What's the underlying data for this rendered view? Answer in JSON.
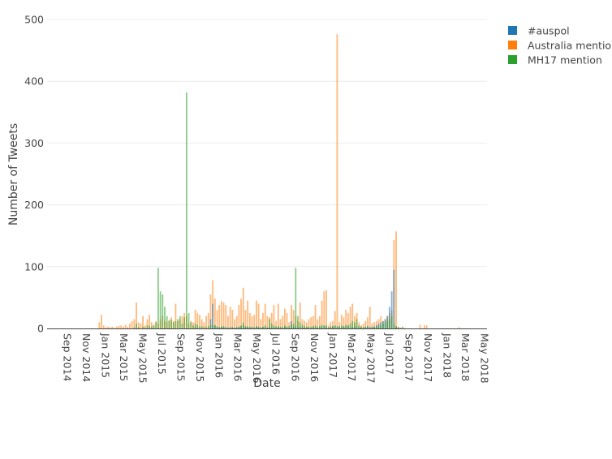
{
  "chart_data": {
    "type": "bar",
    "barmode": "overlay",
    "xlabel": "Date",
    "ylabel": "Number of Tweets",
    "ylim": [
      0,
      500
    ],
    "yticks": [
      "0",
      "100",
      "200",
      "300",
      "400",
      "500"
    ],
    "xticks": [
      "Sep 2014",
      "Nov 2014",
      "Jan 2015",
      "Mar 2015",
      "May 2015",
      "Jul 2015",
      "Sep 2015",
      "Nov 2015",
      "Jan 2016",
      "Mar 2016",
      "May 2016",
      "Jul 2016",
      "Sep 2016",
      "Nov 2016",
      "Jan 2017",
      "Mar 2017",
      "May 2017",
      "Jul 2017",
      "Sep 2017",
      "Nov 2017",
      "Jan 2018",
      "Mar 2018",
      "May 2018"
    ],
    "xtick_dates": [
      "2014-09-01",
      "2014-11-01",
      "2015-01-01",
      "2015-03-01",
      "2015-05-01",
      "2015-07-01",
      "2015-09-01",
      "2015-11-01",
      "2016-01-01",
      "2016-03-01",
      "2016-05-01",
      "2016-07-01",
      "2016-09-01",
      "2016-11-01",
      "2017-01-01",
      "2017-03-01",
      "2017-05-01",
      "2017-07-01",
      "2017-09-01",
      "2017-11-01",
      "2018-01-01",
      "2018-03-01",
      "2018-05-01"
    ],
    "grid": true,
    "legend_position": "top-right",
    "x": [
      "2015-01-05",
      "2015-01-12",
      "2015-01-19",
      "2015-01-26",
      "2015-02-02",
      "2015-02-09",
      "2015-02-16",
      "2015-02-23",
      "2015-03-02",
      "2015-03-09",
      "2015-03-16",
      "2015-03-23",
      "2015-03-30",
      "2015-04-06",
      "2015-04-13",
      "2015-04-20",
      "2015-04-27",
      "2015-05-04",
      "2015-05-11",
      "2015-05-18",
      "2015-05-25",
      "2015-06-01",
      "2015-06-08",
      "2015-06-15",
      "2015-06-22",
      "2015-06-29",
      "2015-07-06",
      "2015-07-13",
      "2015-07-20",
      "2015-07-27",
      "2015-08-03",
      "2015-08-10",
      "2015-08-17",
      "2015-08-24",
      "2015-08-31",
      "2015-09-07",
      "2015-09-14",
      "2015-09-21",
      "2015-09-28",
      "2015-10-05",
      "2015-10-12",
      "2015-10-19",
      "2015-10-26",
      "2015-11-02",
      "2015-11-09",
      "2015-11-16",
      "2015-11-23",
      "2015-11-30",
      "2015-12-07",
      "2015-12-14",
      "2015-12-21",
      "2015-12-28",
      "2016-01-04",
      "2016-01-11",
      "2016-01-18",
      "2016-01-25",
      "2016-02-01",
      "2016-02-08",
      "2016-02-15",
      "2016-02-22",
      "2016-02-29",
      "2016-03-07",
      "2016-03-14",
      "2016-03-21",
      "2016-03-28",
      "2016-04-04",
      "2016-04-11",
      "2016-04-18",
      "2016-04-25",
      "2016-05-02",
      "2016-05-09",
      "2016-05-16",
      "2016-05-23",
      "2016-05-30",
      "2016-06-06",
      "2016-06-13",
      "2016-06-20",
      "2016-06-27",
      "2016-07-04",
      "2016-07-11",
      "2016-07-18",
      "2016-07-25",
      "2016-08-01",
      "2016-08-08",
      "2016-08-15",
      "2016-08-22",
      "2016-08-29",
      "2016-09-05",
      "2016-09-12",
      "2016-09-19",
      "2016-09-26",
      "2016-10-03",
      "2016-10-10",
      "2016-10-17",
      "2016-10-24",
      "2016-10-31",
      "2016-11-07",
      "2016-11-14",
      "2016-11-21",
      "2016-11-28",
      "2016-12-05",
      "2016-12-12",
      "2016-12-19",
      "2016-12-26",
      "2017-01-02",
      "2017-01-09",
      "2017-01-16",
      "2017-01-23",
      "2017-01-30",
      "2017-02-06",
      "2017-02-13",
      "2017-02-20",
      "2017-02-27",
      "2017-03-06",
      "2017-03-13",
      "2017-03-20",
      "2017-03-27",
      "2017-04-03",
      "2017-04-10",
      "2017-04-17",
      "2017-04-24",
      "2017-05-01",
      "2017-05-08",
      "2017-05-15",
      "2017-05-22",
      "2017-05-29",
      "2017-06-05",
      "2017-06-12",
      "2017-06-19",
      "2017-06-26",
      "2017-07-03",
      "2017-07-10",
      "2017-07-17",
      "2017-07-24",
      "2017-07-31",
      "2017-08-07",
      "2017-08-14",
      "2017-08-21",
      "2017-08-28",
      "2017-09-04",
      "2017-09-11",
      "2017-09-18",
      "2017-09-25",
      "2017-10-30",
      "2017-11-13",
      "2017-11-20",
      "2018-03-05"
    ],
    "series": [
      {
        "name": "#auspol",
        "color": "#1f77b4",
        "values": [
          0,
          0,
          0,
          0,
          0,
          0,
          0,
          0,
          0,
          0,
          0,
          0,
          0,
          0,
          0,
          0,
          0,
          0,
          0,
          0,
          0,
          0,
          0,
          0,
          0,
          0,
          0,
          0,
          0,
          0,
          0,
          0,
          0,
          0,
          0,
          0,
          0,
          0,
          0,
          0,
          0,
          0,
          0,
          0,
          3,
          0,
          0,
          0,
          0,
          0,
          0,
          15,
          40,
          5,
          3,
          2,
          3,
          2,
          2,
          1,
          2,
          2,
          1,
          2,
          3,
          3,
          5,
          2,
          3,
          2,
          2,
          1,
          3,
          2,
          1,
          2,
          3,
          1,
          2,
          2,
          3,
          1,
          2,
          1,
          2,
          3,
          2,
          1,
          12,
          3,
          4,
          2,
          3,
          2,
          1,
          2,
          1,
          2,
          3,
          2,
          1,
          2,
          3,
          4,
          2,
          1,
          2,
          3,
          4,
          2,
          3,
          2,
          3,
          3,
          4,
          2,
          3,
          3,
          4,
          2,
          1,
          2,
          2,
          3,
          2,
          2,
          3,
          5,
          8,
          10,
          12,
          15,
          20,
          35,
          60,
          95,
          2,
          1,
          0,
          0,
          0,
          0,
          0,
          0,
          0,
          0,
          0
        ]
      },
      {
        "name": "Australia mention",
        "color": "#ff7f0e",
        "values": [
          10,
          22,
          5,
          2,
          3,
          2,
          3,
          1,
          3,
          4,
          5,
          3,
          6,
          3,
          8,
          12,
          15,
          42,
          10,
          8,
          20,
          5,
          15,
          22,
          10,
          6,
          12,
          8,
          15,
          20,
          12,
          10,
          14,
          18,
          12,
          40,
          12,
          15,
          20,
          25,
          20,
          8,
          12,
          10,
          30,
          25,
          22,
          15,
          10,
          20,
          25,
          55,
          78,
          48,
          30,
          38,
          44,
          42,
          38,
          20,
          35,
          30,
          15,
          20,
          38,
          48,
          66,
          30,
          45,
          25,
          20,
          22,
          45,
          40,
          15,
          25,
          40,
          20,
          18,
          25,
          38,
          12,
          40,
          15,
          20,
          32,
          25,
          10,
          38,
          30,
          20,
          12,
          42,
          15,
          12,
          10,
          15,
          18,
          20,
          38,
          15,
          20,
          45,
          60,
          62,
          5,
          10,
          12,
          28,
          476,
          10,
          22,
          18,
          30,
          25,
          35,
          40,
          20,
          25,
          10,
          5,
          8,
          12,
          18,
          35,
          8,
          10,
          12,
          15,
          20,
          12,
          15,
          20,
          25,
          30,
          143,
          157,
          3,
          1,
          0,
          1,
          0,
          0,
          6,
          5,
          5,
          2
        ]
      },
      {
        "name": "MH17 mention",
        "color": "#2ca02c",
        "values": [
          0,
          0,
          0,
          0,
          0,
          0,
          0,
          0,
          0,
          0,
          0,
          0,
          0,
          0,
          0,
          0,
          2,
          8,
          2,
          0,
          3,
          2,
          5,
          4,
          3,
          5,
          10,
          98,
          60,
          55,
          35,
          20,
          12,
          14,
          10,
          12,
          15,
          20,
          8,
          18,
          382,
          25,
          10,
          5,
          8,
          6,
          3,
          4,
          3,
          2,
          4,
          5,
          6,
          5,
          3,
          2,
          3,
          4,
          2,
          1,
          2,
          2,
          1,
          2,
          3,
          5,
          10,
          4,
          3,
          2,
          3,
          2,
          4,
          3,
          2,
          3,
          5,
          2,
          15,
          8,
          5,
          3,
          4,
          3,
          2,
          5,
          3,
          4,
          5,
          8,
          98,
          20,
          10,
          6,
          4,
          3,
          3,
          2,
          4,
          5,
          3,
          4,
          6,
          5,
          5,
          2,
          3,
          4,
          5,
          4,
          3,
          5,
          4,
          6,
          5,
          8,
          12,
          10,
          15,
          5,
          3,
          2,
          3,
          4,
          2,
          3,
          2,
          3,
          4,
          5,
          8,
          10,
          12,
          15,
          20,
          8,
          4,
          2,
          1,
          3,
          0,
          0,
          0,
          0,
          0,
          0,
          0
        ]
      }
    ]
  }
}
